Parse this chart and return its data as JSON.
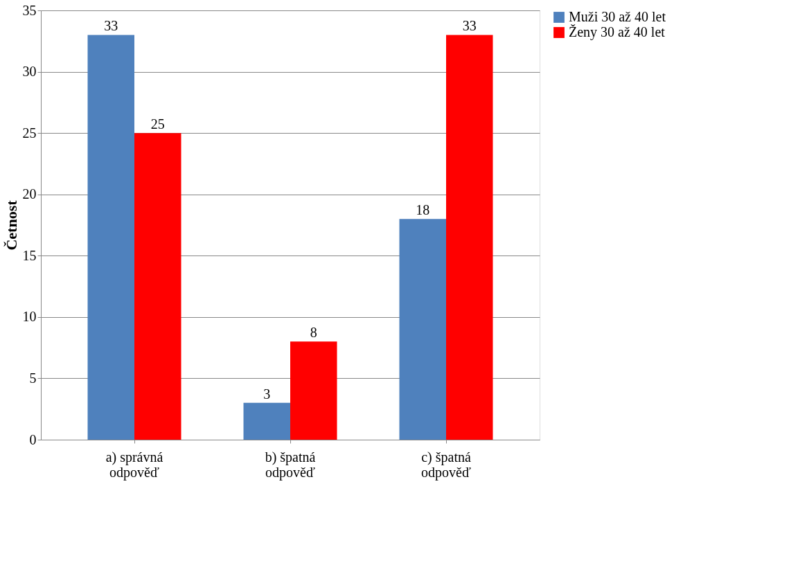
{
  "chart_data": {
    "type": "bar",
    "ylabel": "Četnost",
    "categories": [
      "a) správná odpověď",
      "b) špatná odpověď",
      "c) špatná odpověď"
    ],
    "series": [
      {
        "name": "Muži 30 až 40 let",
        "color": "#4f81bd",
        "values": [
          33,
          3,
          18
        ]
      },
      {
        "name": "Ženy 30 až 40 let",
        "color": "#ff0000",
        "values": [
          25,
          8,
          33
        ]
      }
    ],
    "ylim": [
      0,
      35
    ],
    "yticks": [
      0,
      5,
      10,
      15,
      20,
      25,
      30,
      35
    ],
    "grid": "y",
    "legend": "right",
    "data_labels": true
  }
}
